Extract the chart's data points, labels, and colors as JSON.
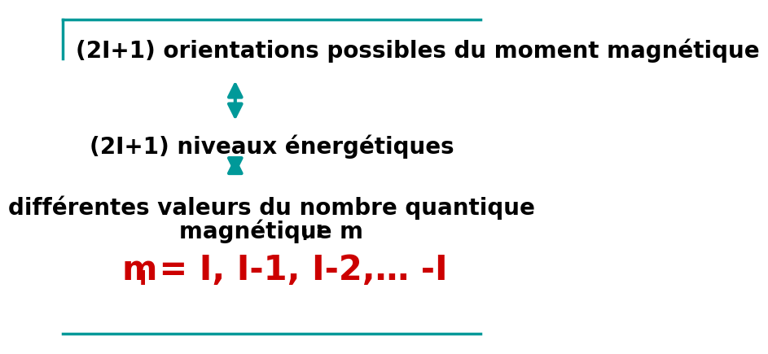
{
  "bg_color": "#ffffff",
  "border_color": "#009999",
  "text1": "(2I+1) orientations possibles du moment magnétique",
  "text2": "(2I+1) niveaux énergétiques",
  "text3a": "différentes valeurs du nombre quantique",
  "text3b": "magnétique m",
  "text3b_sub": "I",
  "text3b_colon": " :",
  "text4_m": "m",
  "text4_sub": "I",
  "text4_rest": " = I, I-1, I-2,… -I",
  "text_color_black": "#000000",
  "text_color_red": "#cc0000",
  "arrow_color": "#009999",
  "font_size_main": 20,
  "font_size_large": 30,
  "font_size_sub_main": 14,
  "font_size_sub_large": 18
}
